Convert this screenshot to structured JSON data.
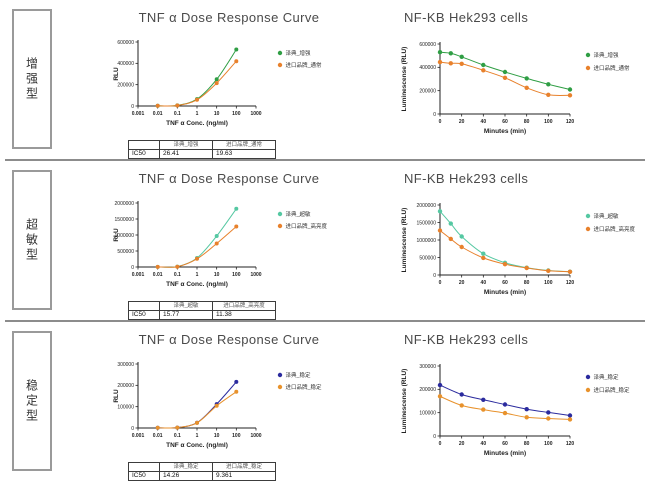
{
  "rows": [
    {
      "label": "增强型"
    },
    {
      "label": "超敏型"
    },
    {
      "label": "稳定型"
    }
  ],
  "colors": {
    "green": "#2f9e44",
    "teal": "#55c8a2",
    "navy": "#2b2b9e",
    "orange": "#e8812c",
    "orange_light": "#e8922c",
    "title_gray": "#4a4a4a",
    "divider_gray": "#8c8c8c"
  },
  "chart_data": [
    {
      "kind": "dose",
      "type": "line",
      "title": "TNF α Dose Response Curve",
      "ylabel": "RLU",
      "xlabel": "TNF α Conc. (ng/ml)",
      "xmode": "log",
      "x": [
        0.01,
        0.1,
        1,
        10,
        100
      ],
      "xticks": [
        "0.001",
        "0.01",
        "0.1",
        "1",
        "10",
        "100",
        "1000"
      ],
      "ylim": [
        0,
        600000
      ],
      "yticks": [
        0,
        200000,
        400000,
        600000
      ],
      "series": [
        {
          "name": "泽典_增强",
          "color": "#2f9e44",
          "values": [
            1500,
            6000,
            65000,
            250000,
            530000
          ]
        },
        {
          "name": "进口品牌_通常",
          "color": "#e8812c",
          "values": [
            1500,
            5000,
            58000,
            215000,
            420000
          ]
        }
      ],
      "table": {
        "row_label": "IC50",
        "values": [
          "26.41",
          "19.63"
        ]
      }
    },
    {
      "kind": "kinetics",
      "type": "line",
      "title": "NF-KB Hek293 cells",
      "ylabel": "Luminescense (RLU)",
      "xlabel": "Minutes (min)",
      "xmode": "linear",
      "x": [
        0,
        10,
        20,
        40,
        60,
        80,
        100,
        120
      ],
      "xticks": [
        "0",
        "20",
        "40",
        "60",
        "80",
        "100",
        "120"
      ],
      "ylim": [
        0,
        600000
      ],
      "yticks": [
        0,
        200000,
        400000,
        600000
      ],
      "series": [
        {
          "name": "泽典_增强",
          "color": "#2f9e44",
          "values": [
            530000,
            520000,
            490000,
            420000,
            360000,
            305000,
            255000,
            210000
          ]
        },
        {
          "name": "进口品牌_通常",
          "color": "#e8812c",
          "values": [
            445000,
            435000,
            430000,
            375000,
            310000,
            225000,
            165000,
            160000
          ]
        }
      ]
    },
    {
      "kind": "dose",
      "type": "line",
      "title": "TNF α Dose Response Curve",
      "ylabel": "RLU",
      "xlabel": "TNF α Conc. (ng/ml)",
      "xmode": "log",
      "x": [
        0.01,
        0.1,
        1,
        10,
        100
      ],
      "xticks": [
        "0.001",
        "0.01",
        "0.1",
        "1",
        "10",
        "100",
        "1000"
      ],
      "ylim": [
        0,
        2000000
      ],
      "yticks": [
        0,
        500000,
        1000000,
        1500000,
        2000000
      ],
      "series": [
        {
          "name": "泽典_超敏",
          "color": "#55c8a2",
          "values": [
            2000,
            12000,
            280000,
            970000,
            1820000
          ]
        },
        {
          "name": "进口品牌_高亮度",
          "color": "#e8812c",
          "values": [
            2000,
            10000,
            255000,
            735000,
            1265000
          ]
        }
      ],
      "table": {
        "row_label": "IC50",
        "values": [
          "15.77",
          "11.38"
        ]
      }
    },
    {
      "kind": "kinetics",
      "type": "line",
      "title": "NF-KB Hek293 cells",
      "ylabel": "Luminescense (RLU)",
      "xlabel": "Minutes (min)",
      "xmode": "linear",
      "x": [
        0,
        10,
        20,
        40,
        60,
        80,
        100,
        120
      ],
      "xticks": [
        "0",
        "20",
        "40",
        "60",
        "80",
        "100",
        "120"
      ],
      "ylim": [
        0,
        2000000
      ],
      "yticks": [
        0,
        500000,
        1000000,
        1500000,
        2000000
      ],
      "series": [
        {
          "name": "泽典_超敏",
          "color": "#55c8a2",
          "values": [
            1820000,
            1470000,
            1100000,
            610000,
            350000,
            210000,
            130000,
            95000
          ]
        },
        {
          "name": "进口品牌_高亮度",
          "color": "#e8812c",
          "values": [
            1270000,
            1030000,
            800000,
            490000,
            310000,
            200000,
            120000,
            90000
          ]
        }
      ]
    },
    {
      "kind": "dose",
      "type": "line",
      "title": "TNF α Dose Response Curve",
      "ylabel": "RLU",
      "xlabel": "TNF α Conc. (ng/ml)",
      "xmode": "log",
      "x": [
        0.01,
        0.1,
        1,
        10,
        100
      ],
      "xticks": [
        "0.001",
        "0.01",
        "0.1",
        "1",
        "10",
        "100",
        "1000"
      ],
      "ylim": [
        0,
        300000
      ],
      "yticks": [
        0,
        100000,
        200000,
        300000
      ],
      "series": [
        {
          "name": "泽典_稳定",
          "color": "#2b2b9e",
          "values": [
            800,
            2000,
            25000,
            112000,
            216000
          ]
        },
        {
          "name": "进口品牌_稳定",
          "color": "#e8922c",
          "values": [
            800,
            2000,
            24000,
            104000,
            170000
          ]
        }
      ],
      "table": {
        "row_label": "IC50",
        "values": [
          "14.26",
          "9.361"
        ]
      }
    },
    {
      "kind": "kinetics",
      "type": "line",
      "title": "NF-KB Hek293 cells",
      "ylabel": "Luminescense (RLU)",
      "xlabel": "Minutes (min)",
      "xmode": "linear",
      "x": [
        0,
        20,
        40,
        60,
        80,
        100,
        120
      ],
      "xticks": [
        "0",
        "20",
        "40",
        "60",
        "80",
        "100",
        "120"
      ],
      "ylim": [
        0,
        300000
      ],
      "yticks": [
        0,
        100000,
        200000,
        300000
      ],
      "series": [
        {
          "name": "泽典_稳定",
          "color": "#2b2b9e",
          "values": [
            218000,
            178000,
            155000,
            135000,
            115000,
            101000,
            88000
          ]
        },
        {
          "name": "进口品牌_稳定",
          "color": "#e8922c",
          "values": [
            170000,
            131000,
            113000,
            98000,
            80000,
            75000,
            71000
          ]
        }
      ]
    }
  ]
}
